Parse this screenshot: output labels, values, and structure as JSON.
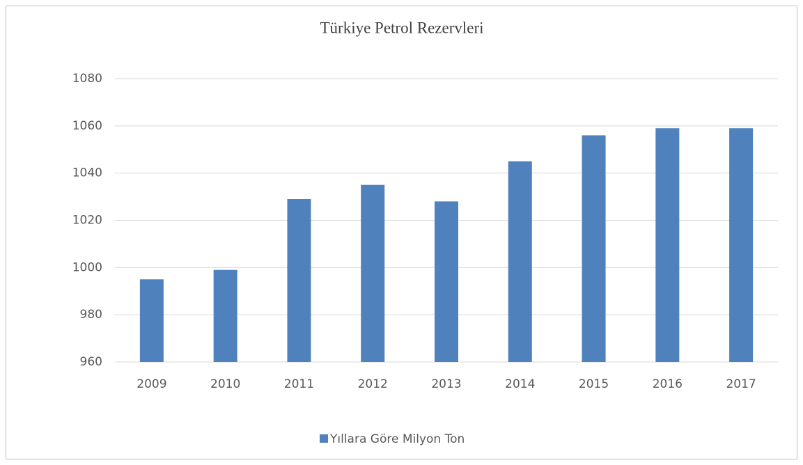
{
  "chart_data": {
    "type": "bar",
    "title": "Türkiye Petrol Rezervleri",
    "categories": [
      "2009",
      "2010",
      "2011",
      "2012",
      "2013",
      "2014",
      "2015",
      "2016",
      "2017"
    ],
    "series": [
      {
        "name": "Yıllara Göre Milyon Ton",
        "color": "#4f81bd",
        "values": [
          995,
          999,
          1029,
          1035,
          1028,
          1045,
          1056,
          1059,
          1059
        ]
      }
    ],
    "ylim": [
      960,
      1080
    ],
    "yticks": [
      960,
      980,
      1000,
      1020,
      1040,
      1060,
      1080
    ],
    "grid": true,
    "legend": "bottom"
  }
}
